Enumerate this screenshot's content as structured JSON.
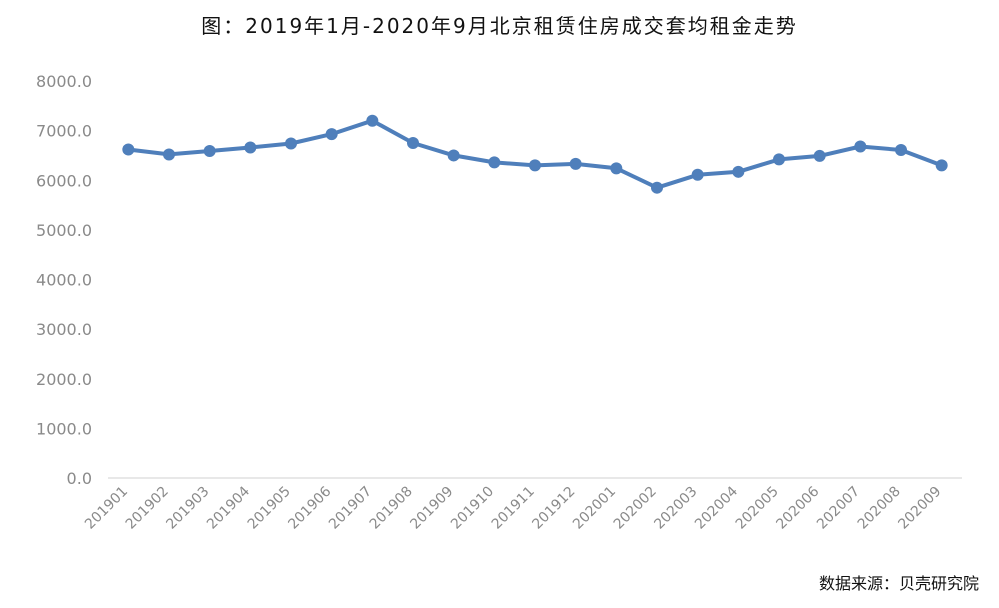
{
  "title": "图：2019年1月-2020年9月北京租赁住房成交套均租金走势",
  "source": "数据来源：贝壳研究院",
  "colors": {
    "series": "#4f7fbb",
    "axis": "#d0d0d0",
    "tick_text": "#8a8a8a"
  },
  "chart_data": {
    "type": "line",
    "categories": [
      "201901",
      "201902",
      "201903",
      "201904",
      "201905",
      "201906",
      "201907",
      "201908",
      "201909",
      "201910",
      "201911",
      "201912",
      "202001",
      "202002",
      "202003",
      "202004",
      "202005",
      "202006",
      "202007",
      "202008",
      "202009"
    ],
    "series": [
      {
        "values": [
          6620,
          6520,
          6590,
          6660,
          6740,
          6930,
          7200,
          6750,
          6500,
          6360,
          6300,
          6330,
          6240,
          5850,
          6110,
          6170,
          6420,
          6490,
          6680,
          6610,
          6300
        ]
      }
    ],
    "y_ticks": [
      "0.0",
      "1000.0",
      "2000.0",
      "3000.0",
      "4000.0",
      "5000.0",
      "6000.0",
      "7000.0",
      "8000.0"
    ],
    "ylim": [
      0,
      8000
    ],
    "grid": false,
    "legend": "none"
  }
}
